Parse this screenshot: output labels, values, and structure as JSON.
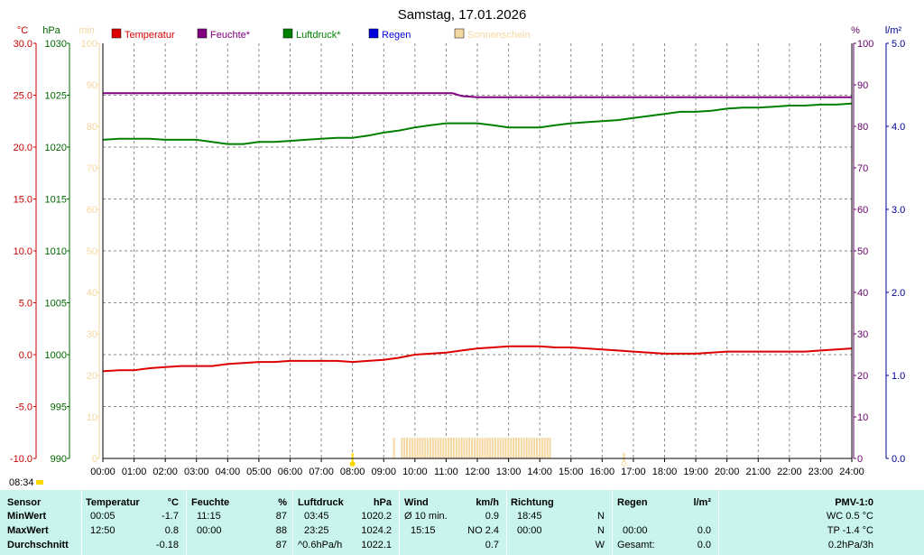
{
  "chart_data": {
    "type": "line",
    "title": "Samstag, 17.01.2026",
    "time_label": "08:34",
    "x_ticks": [
      "00:00",
      "01:00",
      "02:00",
      "03:00",
      "04:00",
      "05:00",
      "06:00",
      "07:00",
      "08:00",
      "09:00",
      "10:00",
      "11:00",
      "12:00",
      "13:00",
      "14:00",
      "15:00",
      "16:00",
      "17:00",
      "18:00",
      "19:00",
      "20:00",
      "21:00",
      "22:00",
      "23:00",
      "24:00"
    ],
    "xlim": [
      0,
      24
    ],
    "axes": {
      "temperature": {
        "unit": "°C",
        "ticks": [
          "30.0",
          "25.0",
          "20.0",
          "15.0",
          "10.0",
          "5.0",
          "0.0",
          "-5.0",
          "-10.0"
        ],
        "range": [
          -10,
          30
        ],
        "color": "#cc0000"
      },
      "pressure": {
        "unit": "hPa",
        "ticks": [
          "1030",
          "1025",
          "1020",
          "1015",
          "1010",
          "1005",
          "1000",
          "995",
          "990"
        ],
        "range": [
          990,
          1030
        ],
        "color": "#006600"
      },
      "sunshine": {
        "unit": "min",
        "ticks": [
          "100",
          "90",
          "80",
          "70",
          "60",
          "50",
          "40",
          "30",
          "20",
          "10",
          "0"
        ],
        "range": [
          0,
          100
        ],
        "color": "#f5d7a0"
      },
      "humidity": {
        "unit": "%",
        "ticks": [
          "100",
          "90",
          "80",
          "70",
          "60",
          "50",
          "40",
          "30",
          "20",
          "10",
          "0"
        ],
        "range": [
          0,
          100
        ],
        "color": "#660066"
      },
      "rain": {
        "unit": "l/m²",
        "ticks": [
          "5.0",
          "4.0",
          "3.0",
          "2.0",
          "1.0",
          "0.0"
        ],
        "range": [
          0,
          5
        ],
        "color": "#000099"
      }
    },
    "legend": [
      {
        "name": "Temperatur",
        "color": "#dd0000"
      },
      {
        "name": "Feuchte*",
        "color": "#800080"
      },
      {
        "name": "Luftdruck*",
        "color": "#008000"
      },
      {
        "name": "Regen",
        "color": "#0000dd"
      },
      {
        "name": "Sonnenschein",
        "color": "#f5d7a0"
      }
    ],
    "series": [
      {
        "name": "Temperatur",
        "axis": "temperature",
        "color": "#dd0000",
        "x": [
          0,
          0.5,
          1,
          1.5,
          2,
          2.5,
          3,
          3.5,
          4,
          4.5,
          5,
          5.5,
          6,
          6.5,
          7,
          7.5,
          8,
          8.5,
          9,
          9.5,
          10,
          10.5,
          11,
          11.5,
          12,
          12.5,
          13,
          13.5,
          14,
          14.5,
          15,
          15.5,
          16,
          16.5,
          17,
          17.5,
          18,
          18.5,
          19,
          19.5,
          20,
          20.5,
          21,
          21.5,
          22,
          22.5,
          23,
          23.5,
          24
        ],
        "y": [
          -1.6,
          -1.5,
          -1.5,
          -1.3,
          -1.2,
          -1.1,
          -1.1,
          -1.1,
          -0.9,
          -0.8,
          -0.7,
          -0.7,
          -0.6,
          -0.6,
          -0.6,
          -0.6,
          -0.7,
          -0.6,
          -0.5,
          -0.3,
          0.0,
          0.1,
          0.2,
          0.4,
          0.6,
          0.7,
          0.8,
          0.8,
          0.8,
          0.7,
          0.7,
          0.6,
          0.5,
          0.4,
          0.3,
          0.2,
          0.1,
          0.1,
          0.1,
          0.2,
          0.3,
          0.3,
          0.3,
          0.3,
          0.3,
          0.3,
          0.4,
          0.5,
          0.6
        ]
      },
      {
        "name": "Feuchte*",
        "axis": "humidity",
        "color": "#800080",
        "x": [
          0,
          11.2,
          11.5,
          12,
          24
        ],
        "y": [
          88,
          88,
          87.3,
          87,
          87
        ]
      },
      {
        "name": "Luftdruck*",
        "axis": "pressure",
        "color": "#008000",
        "x": [
          0,
          0.5,
          1,
          1.5,
          2,
          2.5,
          3,
          3.5,
          4,
          4.5,
          5,
          5.5,
          6,
          6.5,
          7,
          7.5,
          8,
          8.5,
          9,
          9.5,
          10,
          10.5,
          11,
          11.5,
          12,
          12.5,
          13,
          13.5,
          14,
          14.5,
          15,
          15.5,
          16,
          16.5,
          17,
          17.5,
          18,
          18.5,
          19,
          19.5,
          20,
          20.5,
          21,
          21.5,
          22,
          22.5,
          23,
          23.5,
          24
        ],
        "y": [
          1020.7,
          1020.8,
          1020.8,
          1020.8,
          1020.7,
          1020.7,
          1020.7,
          1020.5,
          1020.3,
          1020.3,
          1020.5,
          1020.5,
          1020.6,
          1020.7,
          1020.8,
          1020.9,
          1020.9,
          1021.1,
          1021.4,
          1021.6,
          1021.9,
          1022.1,
          1022.3,
          1022.3,
          1022.3,
          1022.1,
          1021.9,
          1021.9,
          1021.9,
          1022.1,
          1022.3,
          1022.4,
          1022.5,
          1022.6,
          1022.8,
          1023.0,
          1023.2,
          1023.4,
          1023.4,
          1023.5,
          1023.7,
          1023.8,
          1023.8,
          1023.9,
          1024.0,
          1024.0,
          1024.1,
          1024.1,
          1024.2
        ]
      },
      {
        "name": "Regen",
        "axis": "rain",
        "color": "#0000dd",
        "x": [],
        "y": []
      }
    ],
    "sunshine": {
      "axis": "sunshine",
      "color": "#f5d7a0",
      "start": 9.33,
      "end": 14.33,
      "gaps": [
        [
          9.4,
          9.55
        ]
      ],
      "value": 5
    },
    "markers": [
      {
        "x": 8.0,
        "color": "#ffd700",
        "kind": "sunrise"
      },
      {
        "x": 16.7,
        "color": "#f5d7a0",
        "kind": "sunset"
      }
    ],
    "grid": true
  },
  "table": {
    "sensor": {
      "header": "Sensor",
      "rows": [
        "MinWert",
        "MaxWert",
        "Durchschnitt"
      ]
    },
    "temperatur": {
      "header": "Temperatur",
      "unit": "°C",
      "time": [
        "00:05",
        "12:50",
        ""
      ],
      "value": [
        "-1.7",
        "0.8",
        "-0.18"
      ]
    },
    "feuchte": {
      "header": "Feuchte",
      "unit": "%",
      "time": [
        "11:15",
        "00:00",
        ""
      ],
      "value": [
        "87",
        "88",
        "87"
      ]
    },
    "luftdruck": {
      "header": "Luftdruck",
      "unit": "hPa",
      "time": [
        "03:45",
        "23:25",
        "^0.6hPa/h"
      ],
      "value": [
        "1020.2",
        "1024.2",
        "1022.1"
      ]
    },
    "wind": {
      "header": "Wind",
      "unit": "km/h",
      "time": [
        "Ø 10 min.",
        "15:15",
        ""
      ],
      "value": [
        "0.9",
        "NO 2.4",
        "0.7"
      ]
    },
    "richtung": {
      "header": "Richtung",
      "time": [
        "18:45",
        "00:00",
        ""
      ],
      "value": [
        "N",
        "N",
        "W"
      ]
    },
    "regen": {
      "header": "Regen",
      "unit": "l/m²",
      "time": [
        "",
        "00:00",
        "Gesamt:"
      ],
      "value": [
        "",
        "0.0",
        "0.0"
      ]
    },
    "pmv": {
      "header": "PMV-1:0",
      "value": [
        "WC 0.5 °C",
        "TP -1.4 °C",
        "0.2hPa/3h"
      ]
    }
  }
}
